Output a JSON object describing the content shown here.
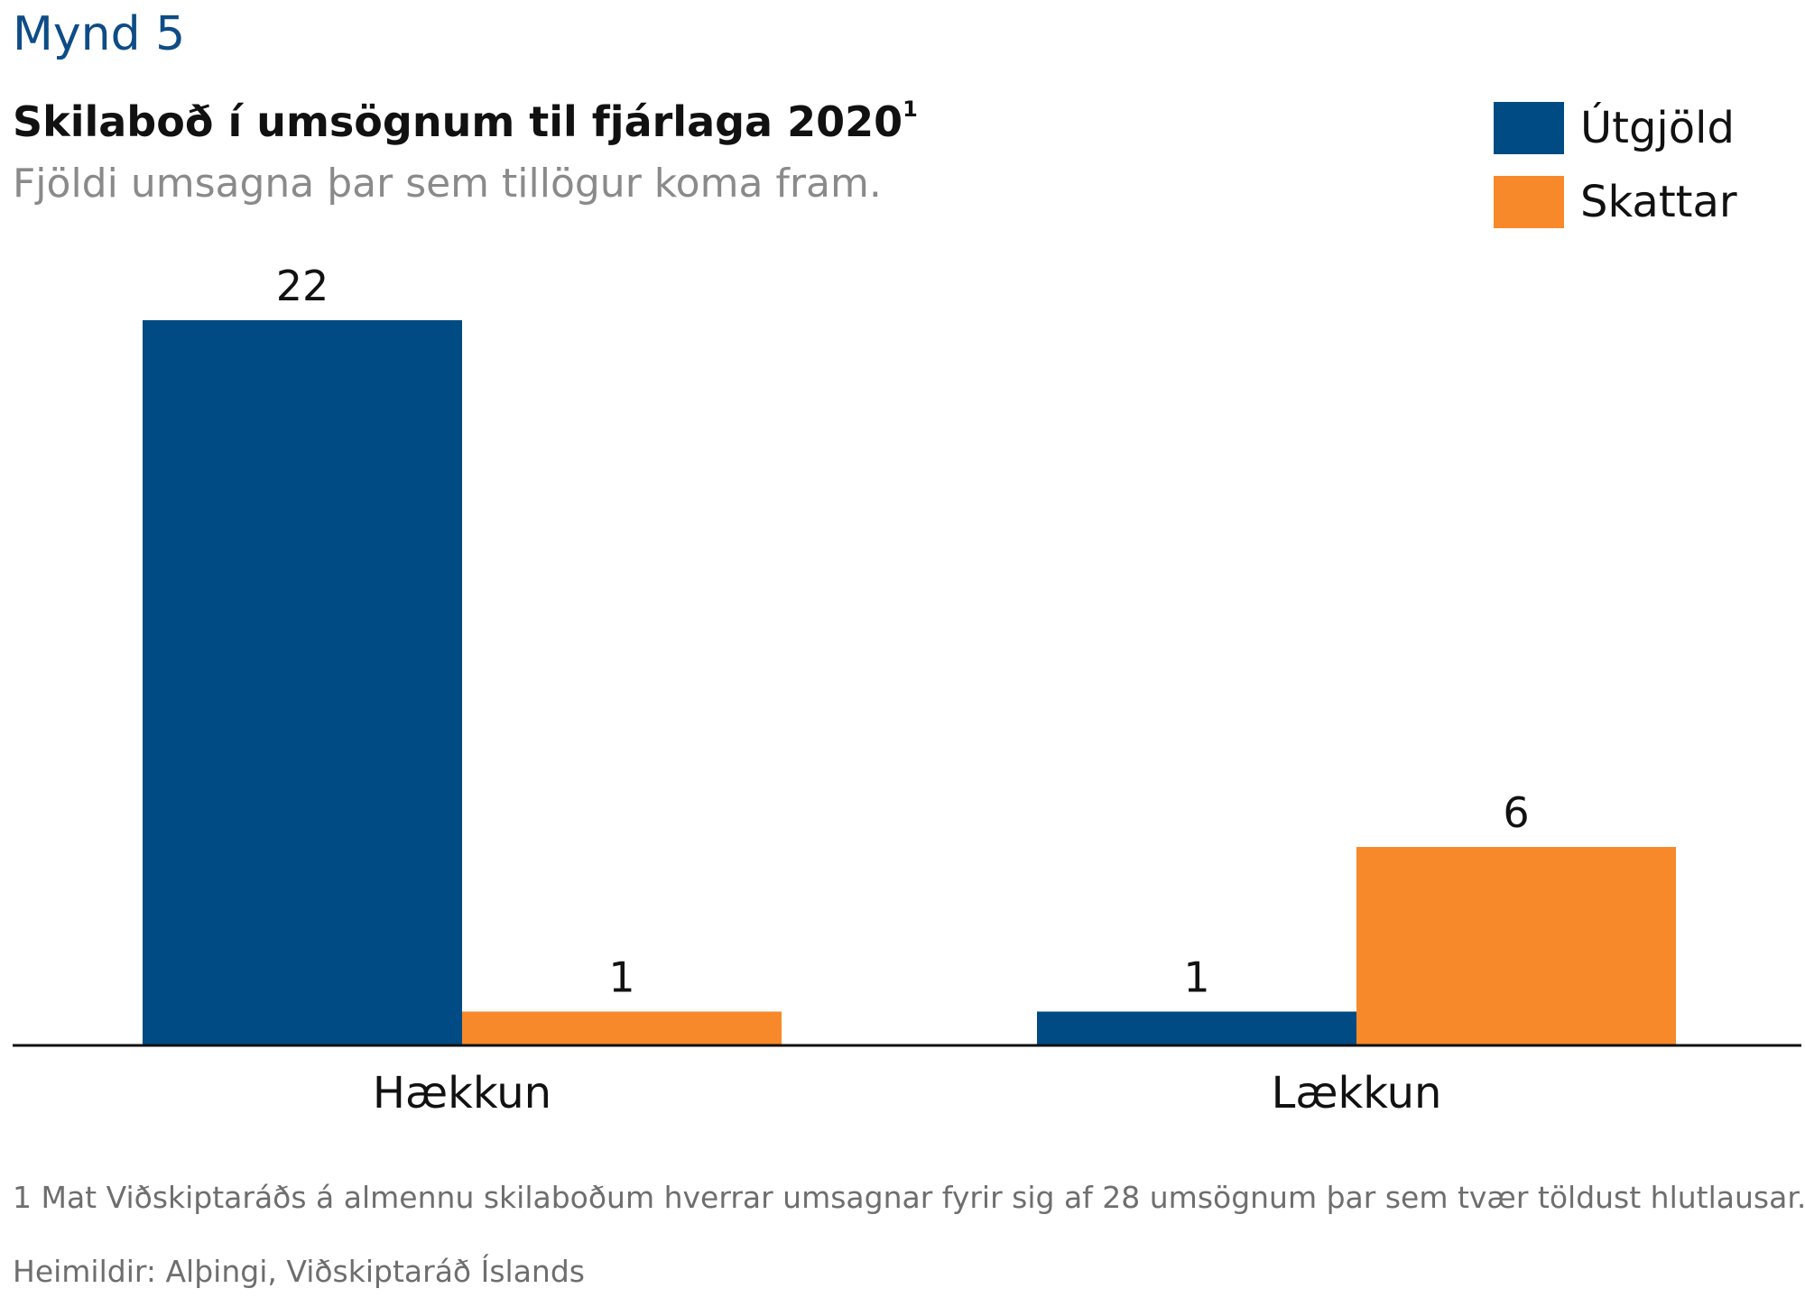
{
  "figure_label": "Mynd 5",
  "footnote": "1 Mat Viðskiptaráðs á almennu skilaboðum hverrar umsagnar fyrir sig af 28 umsögnum þar sem tvær töldust hlutlausar.",
  "source": "Heimildir: Alþingi, Viðskiptaráð Íslands",
  "colors": {
    "utgjold": "#004b84",
    "skattar": "#f7892a",
    "axis": "#111111"
  },
  "chart_data": {
    "type": "bar",
    "title": "Skilaboð í umsögnum til fjárlaga 2020",
    "title_superscript": "1",
    "subtitle": "Fjöldi umsagna þar sem tillögur koma fram.",
    "categories": [
      "Hækkun",
      "Lækkun"
    ],
    "series": [
      {
        "name": "Útgjöld",
        "values": [
          22,
          1
        ]
      },
      {
        "name": "Skattar",
        "values": [
          1,
          6
        ]
      }
    ],
    "ylim": [
      0,
      22
    ],
    "grid": false,
    "legend": "top-right",
    "xlabel": "",
    "ylabel": ""
  }
}
